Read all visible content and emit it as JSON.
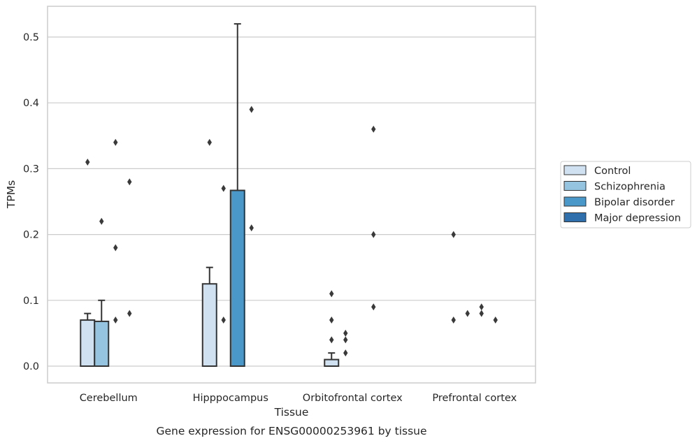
{
  "chart_data": {
    "type": "bar",
    "xlabel": "Tissue",
    "ylabel": "TPMs",
    "caption": "Gene expression for ENSG00000253961 by tissue",
    "ylim": [
      -0.025,
      0.55
    ],
    "yticks": [
      0.0,
      0.1,
      0.2,
      0.3,
      0.4,
      0.5
    ],
    "ytick_labels": [
      "0.0",
      "0.1",
      "0.2",
      "0.3",
      "0.4",
      "0.5"
    ],
    "grid": "horizontal",
    "legend_position": "right",
    "categories": [
      "Cerebellum",
      "Hipppocampus",
      "Orbitofrontal cortex",
      "Prefrontal cortex"
    ],
    "series": [
      {
        "name": "Control",
        "color": "#d0e1f2",
        "values": [
          0.07,
          0.125,
          0.01,
          0.0
        ],
        "error_upper": [
          0.08,
          0.15,
          0.02,
          null
        ],
        "outliers": [
          [
            0.31
          ],
          [
            0.34
          ],
          [
            0.11,
            0.07,
            0.04
          ],
          [
            0.2,
            0.07
          ]
        ]
      },
      {
        "name": "Schizophrenia",
        "color": "#94c4df",
        "values": [
          0.068,
          0.0,
          0.0,
          0.0
        ],
        "error_upper": [
          0.1,
          null,
          null,
          null
        ],
        "outliers": [
          [
            0.22
          ],
          [
            0.27,
            0.07
          ],
          [
            0.05,
            0.04,
            0.02
          ],
          [
            0.08
          ]
        ]
      },
      {
        "name": "Bipolar disorder",
        "color": "#4a98c9",
        "values": [
          0.0,
          0.267,
          0.0,
          0.0
        ],
        "error_upper": [
          null,
          0.52,
          null,
          null
        ],
        "outliers": [
          [
            0.34,
            0.18,
            0.07
          ],
          [],
          [],
          [
            0.09,
            0.08
          ]
        ]
      },
      {
        "name": "Major depression",
        "color": "#2e6fac",
        "values": [
          0.0,
          0.0,
          0.0,
          0.0
        ],
        "error_upper": [
          null,
          null,
          null,
          null
        ],
        "outliers": [
          [
            0.28,
            0.08
          ],
          [
            0.39,
            0.21
          ],
          [
            0.36,
            0.2,
            0.09
          ],
          [
            0.07
          ]
        ]
      }
    ]
  }
}
